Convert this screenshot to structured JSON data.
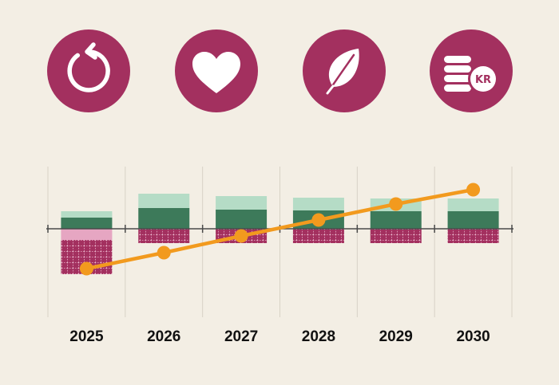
{
  "colors": {
    "background": "#f3eee4",
    "accent": "#a3305f",
    "line": "#f29a1e",
    "dark_green": "#3d7a5a",
    "light_green": "#b5dcc6",
    "pink": "#e6a6c2",
    "grid": "#d8d2c6"
  },
  "icons": [
    {
      "name": "refresh-icon",
      "text": ""
    },
    {
      "name": "heart-icon",
      "text": ""
    },
    {
      "name": "leaf-icon",
      "text": ""
    },
    {
      "name": "coins-kr-icon",
      "text": "KR"
    }
  ],
  "chart_data": {
    "type": "bar",
    "categories": [
      "2025",
      "2026",
      "2027",
      "2028",
      "2029",
      "2030"
    ],
    "series": [
      {
        "kind": "bar-positive-dark",
        "values": [
          14,
          26,
          24,
          23,
          22,
          22
        ]
      },
      {
        "kind": "bar-positive-light",
        "values": [
          8,
          18,
          17,
          16,
          16,
          16
        ]
      },
      {
        "kind": "bar-negative-pink",
        "values": [
          -14,
          0,
          0,
          0,
          0,
          0
        ]
      },
      {
        "kind": "bar-negative-dark",
        "values": [
          -57,
          -18,
          -18,
          -18,
          -18,
          -18
        ]
      },
      {
        "kind": "line",
        "values": [
          -50,
          -30,
          -9,
          11,
          31,
          49
        ]
      }
    ],
    "ylim": [
      -75,
      75
    ],
    "grid": true,
    "zero_line": true
  }
}
